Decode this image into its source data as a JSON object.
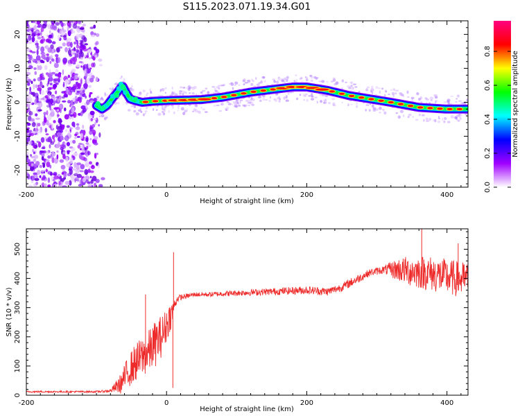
{
  "title": "S115.2023.071.19.34.G01",
  "chart_data": [
    {
      "type": "heatmap",
      "xlabel": "Height of straight line (km)",
      "ylabel": "Frequency (Hz)",
      "xlim": [
        -200,
        430
      ],
      "ylim": [
        -25,
        24
      ],
      "xticks": [
        "-200",
        "0",
        "200",
        "400"
      ],
      "xtick_values": [
        -200,
        0,
        200,
        400
      ],
      "yticks": [
        "-20",
        "-10",
        "0",
        "10",
        "20"
      ],
      "ytick_values": [
        -20,
        -10,
        0,
        10,
        20
      ],
      "noise_region": [
        -200,
        -100
      ],
      "ridge": {
        "x": [
          -100,
          -92,
          -85,
          -78,
          -70,
          -63,
          -58,
          -52,
          -45,
          -35,
          -20,
          0,
          50,
          80,
          120,
          160,
          180,
          200,
          230,
          260,
          290,
          320,
          360,
          400,
          430
        ],
        "y": [
          -1,
          -2,
          -1,
          1,
          3,
          5,
          3,
          1,
          0.5,
          0,
          0.3,
          0.5,
          0.8,
          1.5,
          3,
          4,
          4.5,
          4.5,
          3.5,
          2,
          1,
          0,
          -1.5,
          -2,
          -2
        ]
      },
      "colorbar": {
        "label": "Normalized spectral amplitude",
        "ticks": [
          "0.0",
          "0.2",
          "0.4",
          "0.6",
          "0.8"
        ],
        "tick_values": [
          0,
          0.2,
          0.4,
          0.6,
          0.8
        ],
        "range": [
          0,
          0.98
        ],
        "colors": [
          "#ffffff",
          "#a000ff",
          "#0000ff",
          "#00ffff",
          "#00ff00",
          "#ffff00",
          "#ff0000",
          "#ff0080"
        ]
      },
      "grid": false
    },
    {
      "type": "line",
      "xlabel": "Height of straight line (km)",
      "ylabel": "SNR (10 * v/v)",
      "xlim": [
        -200,
        430
      ],
      "ylim": [
        0,
        570
      ],
      "xticks": [
        "-200",
        "0",
        "200",
        "400"
      ],
      "xtick_values": [
        -200,
        0,
        200,
        400
      ],
      "yticks": [
        "0",
        "100",
        "200",
        "300",
        "400",
        "500"
      ],
      "ytick_values": [
        0,
        100,
        200,
        300,
        400,
        500
      ],
      "color": "#ee2b2b",
      "series": [
        {
          "x": [
            -200,
            -150,
            -100,
            -80,
            -65,
            -55,
            -45,
            -35,
            -25,
            -15,
            -5,
            0,
            5,
            8,
            10,
            15,
            20,
            30,
            40,
            60,
            100,
            150,
            200,
            230,
            250,
            270,
            290,
            310,
            330,
            350,
            370,
            390,
            410,
            430
          ],
          "y": [
            12,
            12,
            12,
            15,
            40,
            80,
            110,
            130,
            150,
            180,
            210,
            240,
            270,
            280,
            300,
            330,
            335,
            340,
            345,
            345,
            350,
            355,
            360,
            355,
            370,
            395,
            420,
            430,
            430,
            425,
            420,
            410,
            400,
            395
          ],
          "noise": [
            3,
            3,
            3,
            5,
            35,
            55,
            65,
            70,
            75,
            80,
            70,
            60,
            50,
            45,
            25,
            12,
            10,
            8,
            8,
            8,
            10,
            12,
            14,
            14,
            14,
            16,
            12,
            14,
            40,
            55,
            60,
            62,
            62,
            60
          ]
        }
      ],
      "spikes": [
        {
          "x": -30,
          "y": 345
        },
        {
          "x": 10,
          "y": 490
        },
        {
          "x": 9,
          "y": 25
        },
        {
          "x": 364,
          "y": 570
        },
        {
          "x": 416,
          "y": 520
        }
      ],
      "grid": false
    }
  ]
}
